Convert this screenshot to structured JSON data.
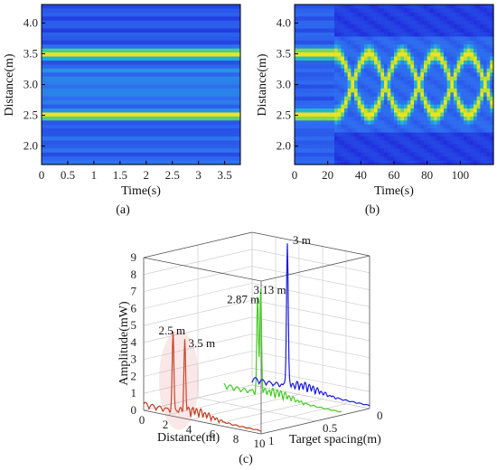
{
  "figure": {
    "panel_labels": [
      "(a)",
      "(b)",
      "(c)"
    ]
  },
  "chart_data": [
    {
      "type": "heatmap",
      "panel": "(a)",
      "xlabel": "Time(s)",
      "ylabel": "Distance(m)",
      "xlim": [
        0,
        3.8
      ],
      "ylim": [
        1.7,
        4.3
      ],
      "xticks": [
        "0",
        "0.5",
        "1",
        "1.5",
        "2",
        "2.5",
        "3",
        "3.5"
      ],
      "yticks": [
        "2.0",
        "2.5",
        "3.0",
        "3.5",
        "4.0"
      ],
      "bands": [
        {
          "distance": 3.5,
          "intensity": "high"
        },
        {
          "distance": 2.5,
          "intensity": "high"
        }
      ],
      "colormap": [
        "#1a1ad6",
        "#2f6bf0",
        "#22b0d8",
        "#3ccd9a",
        "#a8de3c",
        "#f0e21e"
      ]
    },
    {
      "type": "heatmap",
      "panel": "(b)",
      "xlabel": "Time(s)",
      "ylabel": "Distance(m)",
      "xlim": [
        0,
        120
      ],
      "ylim": [
        1.7,
        4.3
      ],
      "xticks": [
        "0",
        "20",
        "40",
        "60",
        "80",
        "100"
      ],
      "yticks": [
        "2.0",
        "2.5",
        "3.0",
        "3.5",
        "4.0"
      ],
      "static_bands": {
        "until_time": 25,
        "distances": [
          3.5,
          2.5
        ]
      },
      "oscillation": {
        "start_time": 25,
        "center": 3.0,
        "amplitude": 0.5,
        "period": 40
      }
    },
    {
      "type": "line",
      "panel": "(c)",
      "projection": "3d",
      "xlabel": "Distance(m)",
      "ylabel": "Target spacing(m)",
      "zlabel": "Amplitude(mW)",
      "xticks": [
        "0",
        "2",
        "4",
        "6",
        "8",
        "10"
      ],
      "yticks": [
        "0",
        "0.5",
        "1"
      ],
      "zticks": [
        "0",
        "1",
        "2",
        "3",
        "4",
        "5",
        "6",
        "7",
        "8",
        "9"
      ],
      "xlim": [
        0,
        10
      ],
      "ylim": [
        0,
        1
      ],
      "zlim": [
        0,
        9
      ],
      "series": [
        {
          "target_spacing": 1.0,
          "color": "#c0391b",
          "peaks": [
            {
              "distance": 2.5,
              "amplitude": 4.5
            },
            {
              "distance": 3.5,
              "amplitude": 4.1
            }
          ]
        },
        {
          "target_spacing": 0.26,
          "color": "#44cc22",
          "peaks": [
            {
              "distance": 2.87,
              "amplitude": 5.5
            },
            {
              "distance": 3.13,
              "amplitude": 6.0
            }
          ]
        },
        {
          "target_spacing": 0.0,
          "color": "#1a1ad6",
          "peaks": [
            {
              "distance": 3.0,
              "amplitude": 8.5
            }
          ]
        }
      ],
      "annotations": [
        "2.5 m",
        "3.5 m",
        "2.87 m",
        "3.13 m",
        "3 m"
      ]
    }
  ]
}
